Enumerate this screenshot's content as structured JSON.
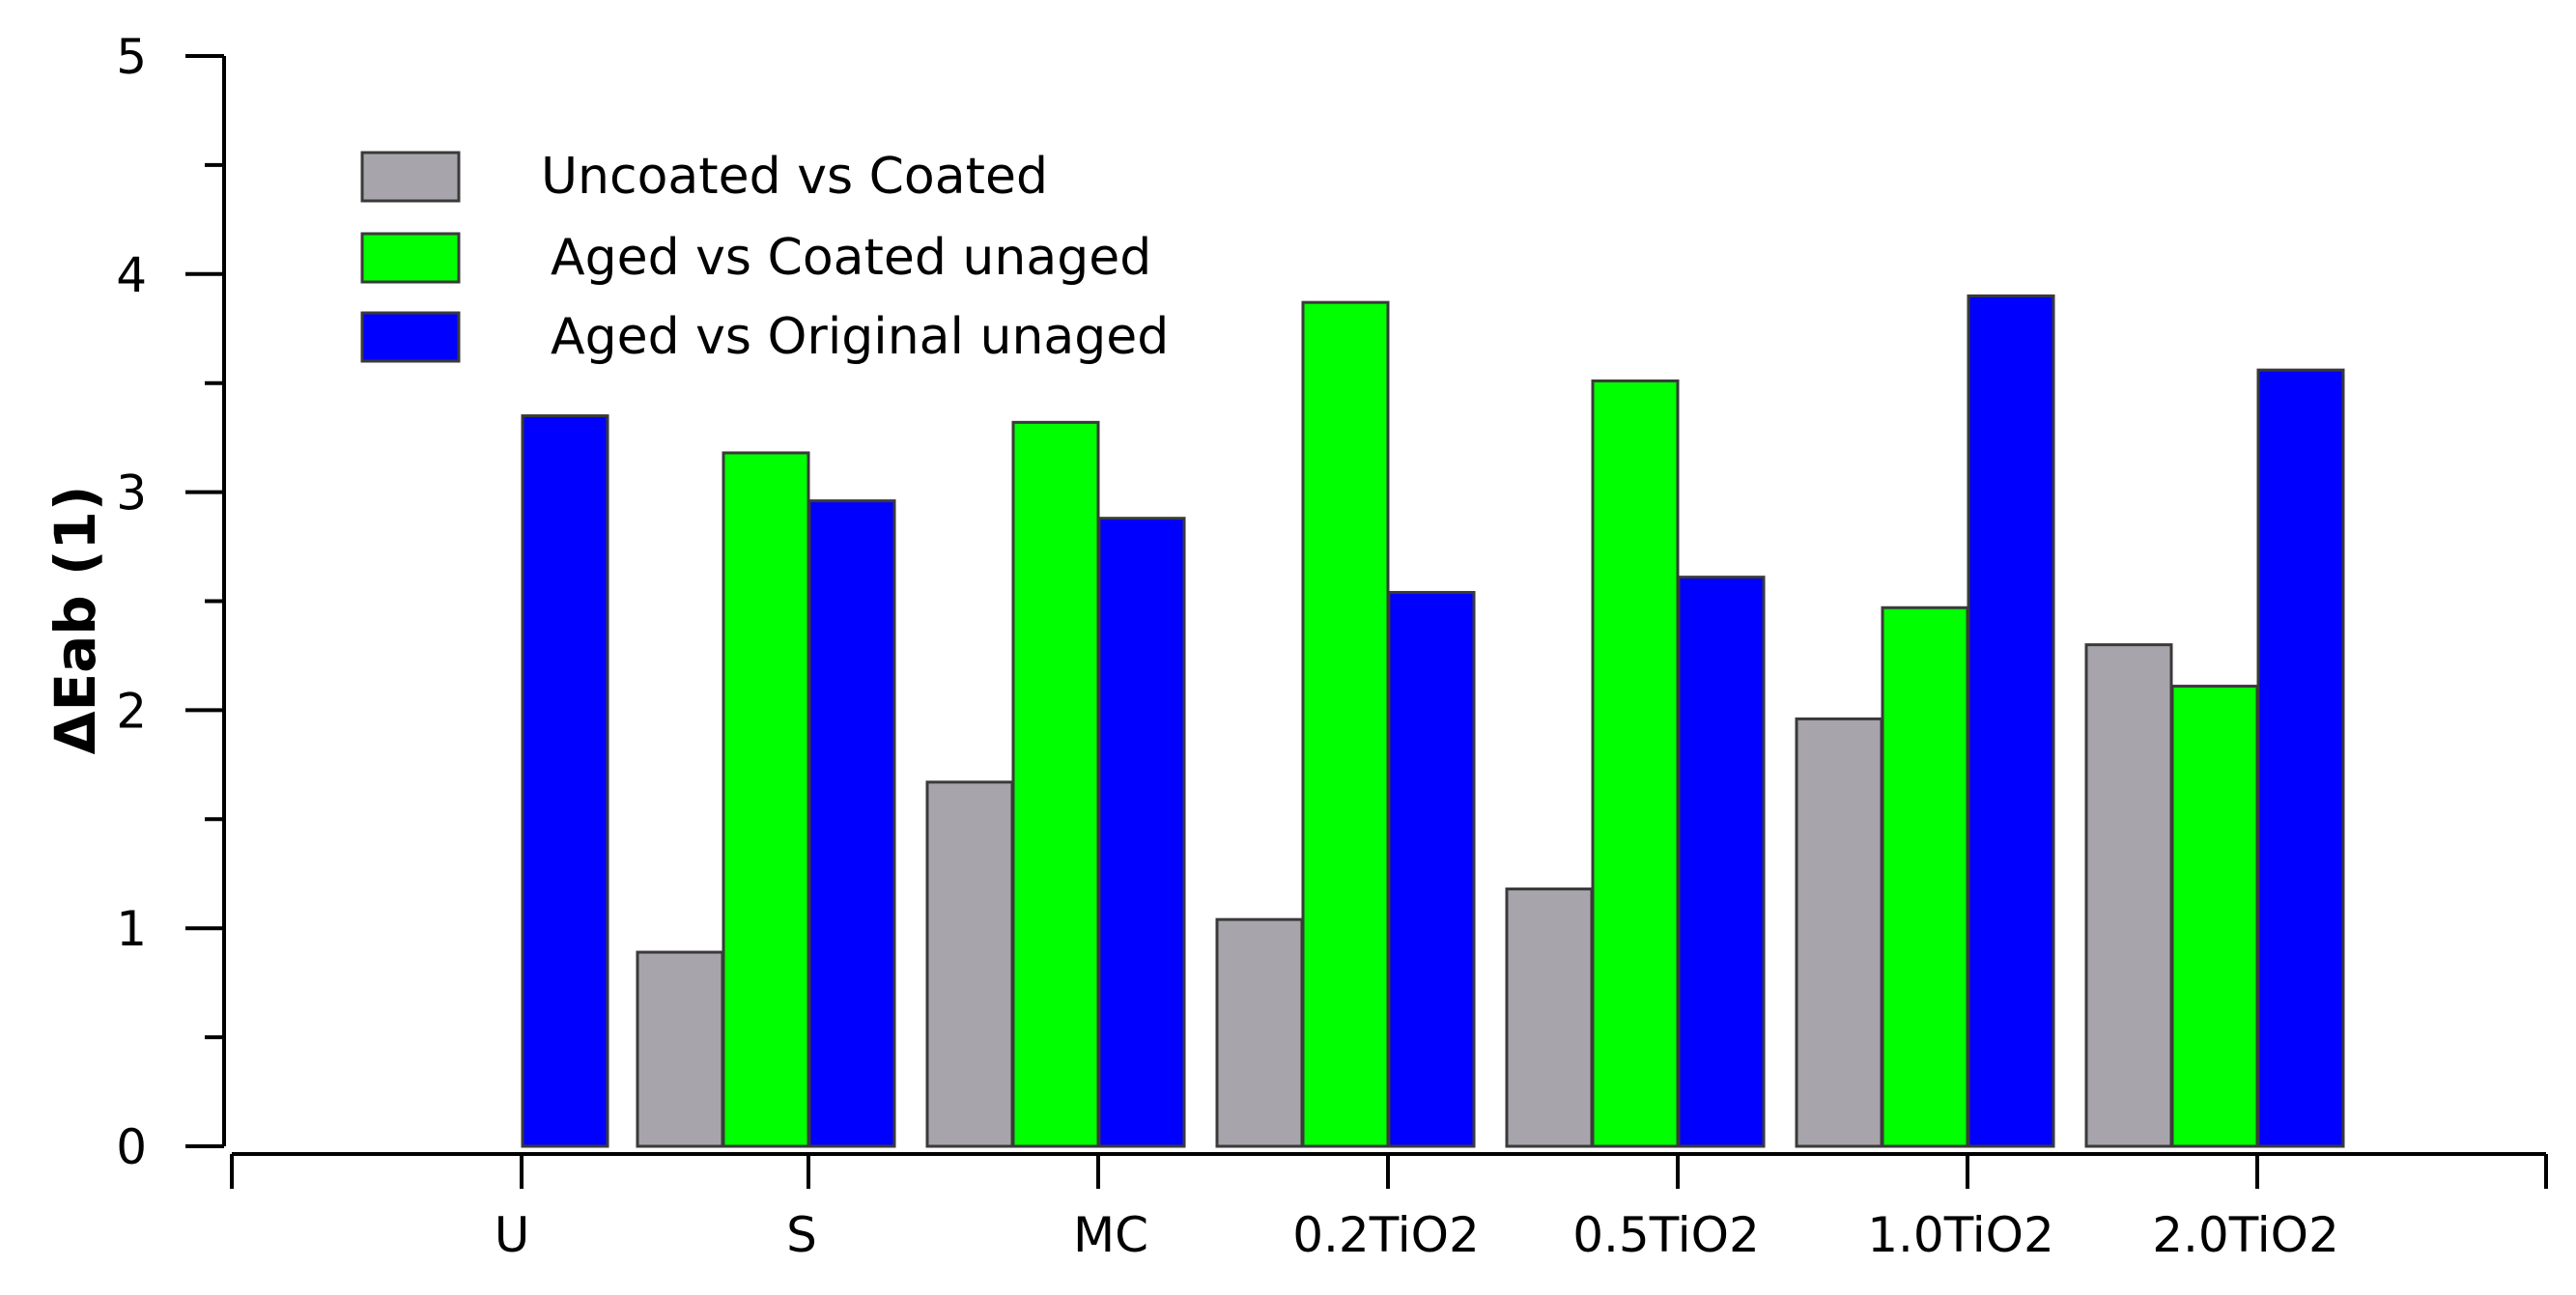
{
  "chart_data": {
    "type": "bar",
    "title": "",
    "xlabel": "",
    "ylabel": "ΔEab (1)",
    "ylim": [
      0,
      5
    ],
    "yticks": [
      0,
      1,
      2,
      3,
      4,
      5
    ],
    "grid": false,
    "legend_position": "top-left",
    "categories": [
      "U",
      "S",
      "MC",
      "0.2TiO2",
      "0.5TiO2",
      "1.0TiO2",
      "2.0TiO2"
    ],
    "series": [
      {
        "name": "Uncoated vs Coated",
        "color": "#a7a5ab",
        "values": [
          null,
          0.89,
          1.67,
          1.04,
          1.18,
          1.96,
          2.3
        ]
      },
      {
        "name": "Aged vs Coated unaged",
        "color": "#00ff00",
        "values": [
          null,
          3.18,
          3.32,
          3.87,
          3.51,
          2.47,
          2.11
        ]
      },
      {
        "name": "Aged vs Original unaged",
        "color": "#0000ff",
        "values": [
          3.35,
          2.96,
          2.88,
          2.54,
          2.61,
          3.9,
          3.56
        ]
      }
    ]
  }
}
